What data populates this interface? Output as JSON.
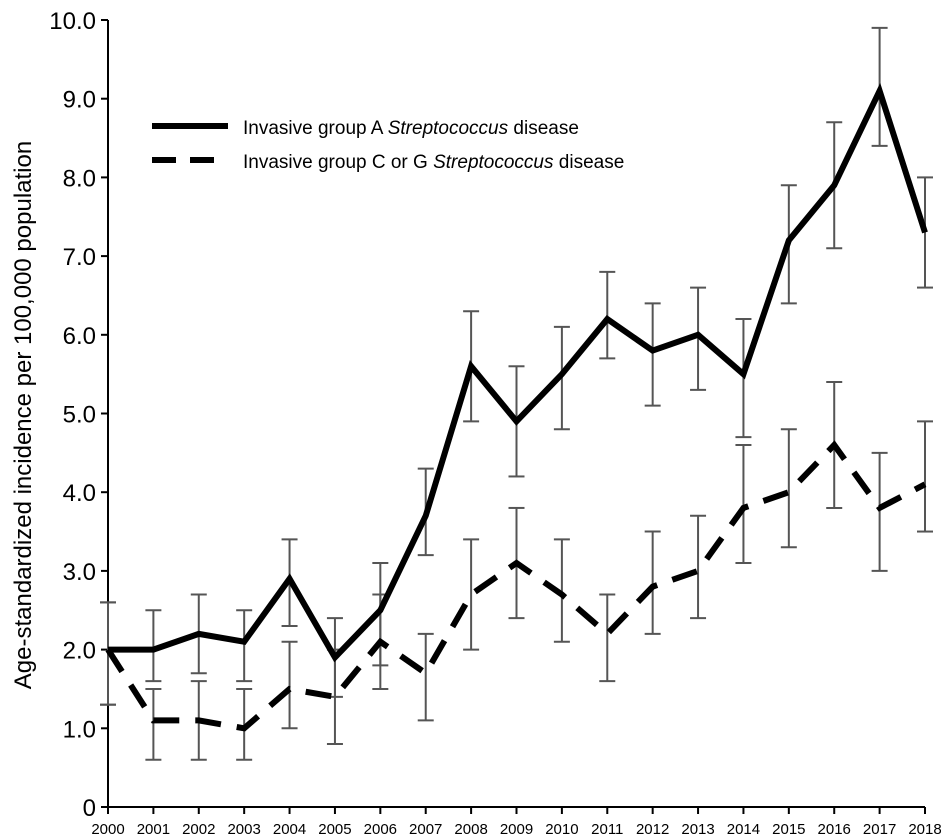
{
  "chart_data": {
    "type": "line",
    "title": "",
    "xlabel": "",
    "ylabel": "Age-standardized incidence per 100,000 population",
    "ylim": [
      0,
      10
    ],
    "y_ticks": [
      "0",
      "1.0",
      "2.0",
      "3.0",
      "4.0",
      "5.0",
      "6.0",
      "7.0",
      "8.0",
      "9.0",
      "10.0"
    ],
    "categories": [
      "2000",
      "2001",
      "2002",
      "2003",
      "2004",
      "2005",
      "2006",
      "2007",
      "2008",
      "2009",
      "2010",
      "2011",
      "2012",
      "2013",
      "2014",
      "2015",
      "2016",
      "2017",
      "2018"
    ],
    "grid": false,
    "legend_position": "top-left",
    "series": [
      {
        "name_prefix": "Invasive group A ",
        "name_italic": "Streptococcus",
        "name_suffix": " disease",
        "line_style": "solid",
        "color": "#000000",
        "values": [
          2.0,
          2.0,
          2.2,
          2.1,
          2.9,
          1.9,
          2.5,
          3.7,
          5.6,
          4.9,
          5.5,
          6.2,
          5.8,
          6.0,
          5.5,
          7.2,
          7.9,
          9.1,
          7.3
        ],
        "error_low": [
          1.3,
          1.6,
          1.7,
          1.6,
          2.3,
          1.4,
          1.8,
          3.2,
          4.9,
          4.2,
          4.8,
          5.7,
          5.1,
          5.3,
          4.7,
          6.4,
          7.1,
          8.4,
          6.6
        ],
        "error_high": [
          2.6,
          2.5,
          2.7,
          2.5,
          3.4,
          2.4,
          3.1,
          4.3,
          6.3,
          5.6,
          6.1,
          6.8,
          6.4,
          6.6,
          6.2,
          7.9,
          8.7,
          9.9,
          8.0
        ]
      },
      {
        "name_prefix": "Invasive group C or G ",
        "name_italic": "Streptococcus",
        "name_suffix": " disease",
        "line_style": "dashed",
        "color": "#000000",
        "values": [
          2.0,
          1.1,
          1.1,
          1.0,
          1.5,
          1.4,
          2.1,
          1.7,
          2.7,
          3.1,
          2.7,
          2.2,
          2.8,
          3.0,
          3.8,
          4.0,
          4.6,
          3.8,
          4.1
        ],
        "error_low": [
          1.3,
          0.6,
          0.6,
          0.6,
          1.0,
          0.8,
          1.5,
          1.1,
          2.0,
          2.4,
          2.1,
          1.6,
          2.2,
          2.4,
          3.1,
          3.3,
          3.8,
          3.0,
          3.5
        ],
        "error_high": [
          2.6,
          1.5,
          1.6,
          1.5,
          2.1,
          2.0,
          2.7,
          2.2,
          3.4,
          3.8,
          3.4,
          2.7,
          3.5,
          3.7,
          4.6,
          4.8,
          5.4,
          4.5,
          4.9
        ]
      }
    ],
    "error_bar_color": "#555555"
  }
}
